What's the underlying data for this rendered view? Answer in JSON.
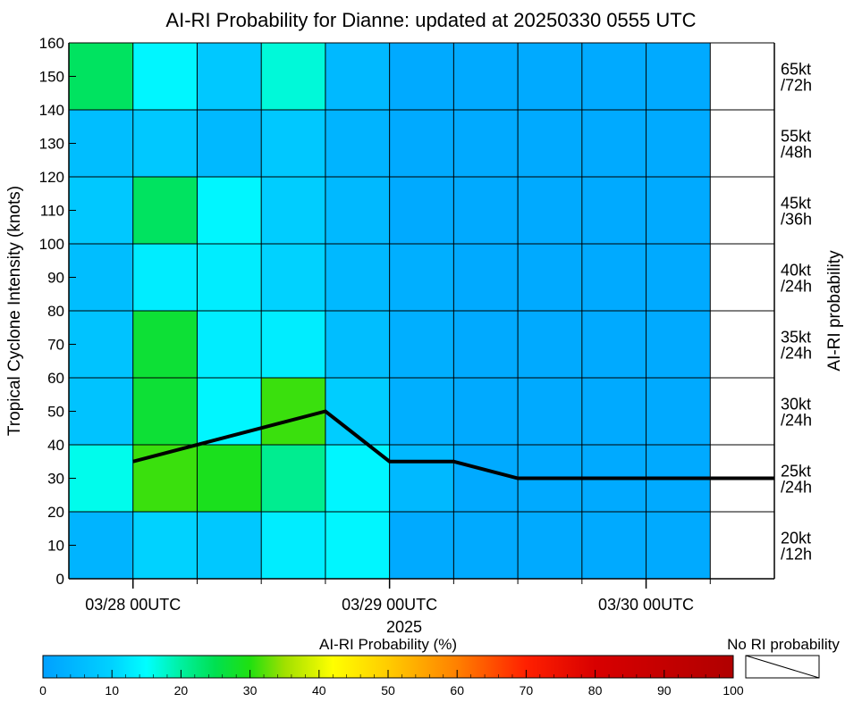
{
  "chart_data": {
    "type": "heatmap",
    "title": "AI-RI Probability for Dianne: updated at 20250330 0555 UTC",
    "ylabel": "Tropical Cyclone Intensity (knots)",
    "xlabel": "2025",
    "right_axis_label": "AI-RI probability",
    "ylim": [
      0,
      160
    ],
    "yticks": [
      0,
      10,
      20,
      30,
      40,
      50,
      60,
      70,
      80,
      90,
      100,
      110,
      120,
      130,
      140,
      150,
      160
    ],
    "xlim": [
      -6,
      60
    ],
    "x_units": "hours since 03/28 00UTC",
    "xticks_major": [
      {
        "hour": 0,
        "label": "03/28 00UTC"
      },
      {
        "hour": 24,
        "label": "03/29 00UTC"
      },
      {
        "hour": 48,
        "label": "03/30 00UTC"
      }
    ],
    "xticks_minor": [
      6,
      12,
      18,
      30,
      36,
      42,
      54
    ],
    "column_bounds_hours": [
      -6,
      0,
      6,
      12,
      18,
      24,
      30,
      36,
      42,
      48,
      54
    ],
    "row_bounds_knots": [
      0,
      20,
      40,
      60,
      80,
      100,
      120,
      140,
      160
    ],
    "right_labels": [
      {
        "kt": "20kt",
        "h": "/12h"
      },
      {
        "kt": "25kt",
        "h": "/24h"
      },
      {
        "kt": "30kt",
        "h": "/24h"
      },
      {
        "kt": "35kt",
        "h": "/24h"
      },
      {
        "kt": "40kt",
        "h": "/24h"
      },
      {
        "kt": "45kt",
        "h": "/36h"
      },
      {
        "kt": "55kt",
        "h": "/48h"
      },
      {
        "kt": "65kt",
        "h": "/72h"
      }
    ],
    "cell_probabilities": [
      [
        4,
        10,
        8,
        13,
        14,
        2,
        2,
        2,
        2,
        2
      ],
      [
        16,
        31,
        29,
        21,
        14,
        5,
        2,
        2,
        2,
        2
      ],
      [
        7,
        27,
        14,
        31,
        9,
        3,
        2,
        2,
        2,
        2
      ],
      [
        7,
        27,
        13,
        13,
        6,
        3,
        2,
        2,
        2,
        2
      ],
      [
        6,
        13,
        13,
        10,
        5,
        3,
        2,
        2,
        2,
        2
      ],
      [
        8,
        24,
        14,
        9,
        5,
        2,
        2,
        2,
        2,
        2
      ],
      [
        6,
        8,
        5,
        8,
        4,
        2,
        2,
        2,
        2,
        2
      ],
      [
        24,
        14,
        8,
        17,
        5,
        2,
        2,
        2,
        2,
        2
      ]
    ],
    "series": [
      {
        "name": "Intensity forecast",
        "points": [
          {
            "hour": 0,
            "kt": 35
          },
          {
            "hour": 18,
            "kt": 50
          },
          {
            "hour": 24,
            "kt": 35
          },
          {
            "hour": 30,
            "kt": 35
          },
          {
            "hour": 36,
            "kt": 30
          },
          {
            "hour": 60,
            "kt": 30
          }
        ]
      }
    ],
    "colorbar": {
      "label": "AI-RI Probability (%)",
      "range": [
        0,
        100
      ],
      "ticks": [
        0,
        10,
        20,
        30,
        40,
        50,
        60,
        70,
        80,
        90,
        100
      ],
      "stops": [
        {
          "v": 0,
          "c": "#00a0ff"
        },
        {
          "v": 10,
          "c": "#00d2ff"
        },
        {
          "v": 15,
          "c": "#00ffff"
        },
        {
          "v": 20,
          "c": "#00f0a0"
        },
        {
          "v": 25,
          "c": "#00e050"
        },
        {
          "v": 30,
          "c": "#20e010"
        },
        {
          "v": 35,
          "c": "#a0e000"
        },
        {
          "v": 42,
          "c": "#ffff00"
        },
        {
          "v": 50,
          "c": "#ffcc00"
        },
        {
          "v": 60,
          "c": "#ff8000"
        },
        {
          "v": 70,
          "c": "#ff2000"
        },
        {
          "v": 80,
          "c": "#d80000"
        },
        {
          "v": 100,
          "c": "#b00000"
        }
      ]
    },
    "no_ri_label": "No RI probability"
  },
  "colors": {
    "background": "#ffffff",
    "axis": "#000000",
    "grid": "#000000",
    "line": "#000000"
  }
}
